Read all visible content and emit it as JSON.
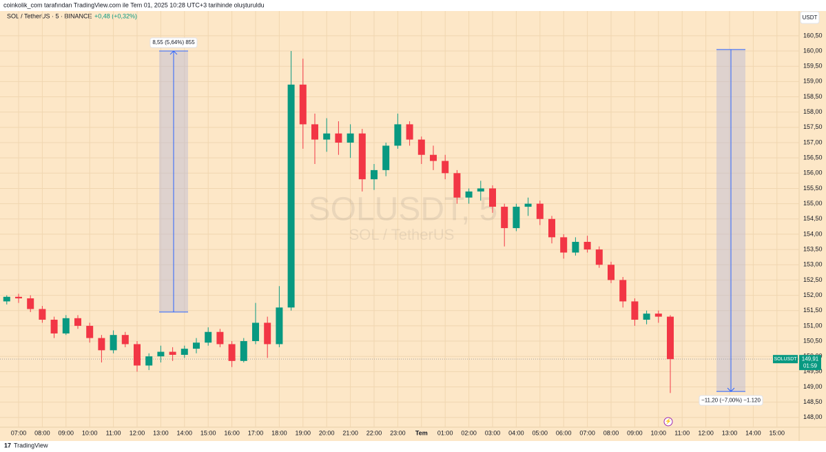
{
  "header": "coinkolik_com tarafından TradingView.com ile Tem 01, 2025 10:28 UTC+3 tarihinde oluşturuldu",
  "footer": "TradingView",
  "chart_data": {
    "type": "candlestick",
    "title": "SOL / TetherUS · 5 · BINANCE",
    "change": "+0,48 (+0,32%)",
    "watermark": "SOLUSDT, 5",
    "watermark_subtitle": "SOL / TetherUS",
    "currency": "USDT",
    "up_color": "#089981",
    "down_color": "#f23645",
    "grid": true,
    "categories": [
      null,
      "07:00",
      null,
      "08:00",
      null,
      "09:00",
      null,
      "10:00",
      null,
      "11:00",
      null,
      "12:00",
      null,
      "13:00",
      null,
      "14:00",
      null,
      "15:00",
      null,
      "16:00",
      null,
      "17:00",
      null,
      "18:00",
      null,
      "19:00",
      null,
      "20:00",
      null,
      "21:00",
      null,
      "22:00",
      null,
      "23:00",
      null,
      "Tem",
      null,
      "01:00",
      null,
      "02:00",
      null,
      "03:00",
      null,
      "04:00",
      null,
      "05:00",
      null,
      "06:00",
      null,
      "07:00",
      null,
      "08:00",
      null,
      "09:00",
      null,
      "10:00",
      null,
      "11:00",
      null,
      "12:00",
      null,
      "13:00",
      null,
      "14:00",
      null,
      "15:00",
      null
    ],
    "open": [
      151.8,
      151.95,
      151.9,
      151.55,
      151.2,
      150.75,
      151.25,
      151.0,
      150.6,
      150.2,
      150.7,
      150.4,
      149.7,
      150.0,
      150.15,
      150.05,
      150.25,
      150.45,
      150.8,
      150.4,
      149.85,
      150.5,
      151.1,
      150.4,
      151.6,
      158.9,
      157.6,
      157.1,
      157.3,
      157.0,
      157.3,
      155.8,
      156.1,
      156.9,
      157.6,
      157.1,
      156.6,
      156.4,
      156.0,
      155.2,
      155.4,
      155.5,
      154.9,
      154.2,
      154.9,
      155.0,
      154.5,
      153.9,
      153.4,
      153.75,
      153.5,
      153.0,
      152.5,
      151.8,
      151.2,
      151.4,
      151.3,
      null,
      null,
      null,
      null,
      null,
      null,
      null,
      null,
      null,
      null
    ],
    "high": [
      152.0,
      152.05,
      152.0,
      151.65,
      151.3,
      151.35,
      151.35,
      151.1,
      150.7,
      150.85,
      150.8,
      150.5,
      150.1,
      150.35,
      150.3,
      150.35,
      150.6,
      150.95,
      150.9,
      150.5,
      150.6,
      151.75,
      151.3,
      152.3,
      160.0,
      159.75,
      157.95,
      157.8,
      157.7,
      157.6,
      157.45,
      156.3,
      157.0,
      157.95,
      157.7,
      157.2,
      156.9,
      156.6,
      156.1,
      155.5,
      155.75,
      155.6,
      155.0,
      155.0,
      155.2,
      155.1,
      154.6,
      154.0,
      153.9,
      153.95,
      153.6,
      153.1,
      152.6,
      151.9,
      151.5,
      151.5,
      151.35,
      null,
      null,
      null,
      null,
      null,
      null,
      null,
      null,
      null,
      null
    ],
    "low": [
      151.7,
      151.75,
      151.45,
      151.1,
      150.6,
      150.7,
      150.9,
      150.45,
      149.8,
      150.1,
      150.3,
      149.5,
      149.55,
      149.8,
      149.85,
      149.95,
      150.1,
      150.35,
      150.3,
      149.65,
      149.8,
      150.4,
      149.95,
      150.3,
      151.5,
      156.8,
      156.3,
      156.7,
      156.6,
      156.5,
      155.4,
      155.45,
      155.9,
      156.8,
      156.9,
      156.3,
      156.1,
      155.8,
      155.0,
      155.0,
      155.1,
      154.7,
      153.6,
      154.1,
      154.6,
      154.3,
      153.7,
      153.2,
      153.3,
      153.4,
      152.9,
      152.4,
      151.6,
      151.0,
      151.05,
      151.1,
      148.8,
      null,
      null,
      null,
      null,
      null,
      null,
      null,
      null,
      null,
      null
    ],
    "close": [
      151.95,
      151.9,
      151.55,
      151.2,
      150.75,
      151.25,
      151.0,
      150.6,
      150.2,
      150.7,
      150.4,
      149.7,
      150.0,
      150.15,
      150.05,
      150.25,
      150.45,
      150.8,
      150.4,
      149.85,
      150.5,
      151.1,
      150.4,
      151.6,
      158.9,
      157.6,
      157.1,
      157.3,
      157.0,
      157.3,
      155.8,
      156.1,
      156.9,
      157.6,
      157.1,
      156.6,
      156.4,
      156.0,
      155.2,
      155.4,
      155.5,
      154.9,
      154.2,
      154.9,
      155.0,
      154.5,
      153.9,
      153.4,
      153.75,
      153.5,
      153.0,
      152.5,
      151.8,
      151.2,
      151.4,
      151.3,
      149.91,
      null,
      null,
      null,
      null,
      null,
      null,
      null,
      null,
      null,
      null
    ],
    "ylim": [
      147.68,
      161.31
    ],
    "yticks": [
      {
        "value": 148,
        "label": "148,00"
      },
      {
        "value": 148.5,
        "label": "148,50"
      },
      {
        "value": 149,
        "label": "149,00"
      },
      {
        "value": 149.5,
        "label": "149,50"
      },
      {
        "value": 150,
        "label": "150,00"
      },
      {
        "value": 150.5,
        "label": "150,50"
      },
      {
        "value": 151,
        "label": "151,00"
      },
      {
        "value": 151.5,
        "label": "151,50"
      },
      {
        "value": 152,
        "label": "152,00"
      },
      {
        "value": 152.5,
        "label": "152,50"
      },
      {
        "value": 153,
        "label": "153,00"
      },
      {
        "value": 153.5,
        "label": "153,50"
      },
      {
        "value": 154,
        "label": "154,00"
      },
      {
        "value": 154.5,
        "label": "154,50"
      },
      {
        "value": 155,
        "label": "155,00"
      },
      {
        "value": 155.5,
        "label": "155,50"
      },
      {
        "value": 156,
        "label": "156,00"
      },
      {
        "value": 156.5,
        "label": "156,50"
      },
      {
        "value": 157,
        "label": "157,00"
      },
      {
        "value": 157.5,
        "label": "157,50"
      },
      {
        "value": 158,
        "label": "158,00"
      },
      {
        "value": 158.5,
        "label": "158,50"
      },
      {
        "value": 159,
        "label": "159,00"
      },
      {
        "value": 159.5,
        "label": "159,50"
      },
      {
        "value": 160,
        "label": "160,00"
      },
      {
        "value": 160.5,
        "label": "160,50"
      }
    ],
    "last_price": {
      "symbol": "SOLUSDT",
      "value": 149.91,
      "label": "149,91",
      "countdown": "01:59"
    },
    "measures": [
      {
        "label": "8,55 (5,64%) 855",
        "from": 151.45,
        "to": 160.0
      },
      {
        "label": "−11,20 (−7,00%) −1.120",
        "from": 160.05,
        "to": 148.85
      }
    ]
  }
}
